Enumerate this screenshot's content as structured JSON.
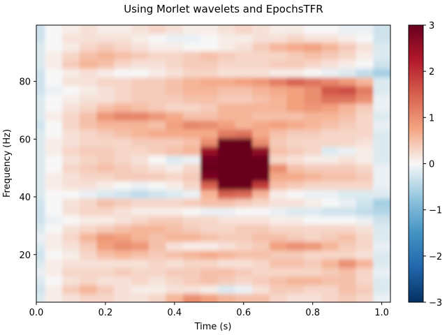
{
  "chart_data": {
    "type": "heatmap",
    "title": "Using Morlet wavelets and EpochsTFR",
    "xlabel": "Time (s)",
    "ylabel": "Frequency (Hz)",
    "xlim": [
      0.0,
      1.025
    ],
    "ylim": [
      3.5,
      99.5
    ],
    "xticks": [
      0.0,
      0.2,
      0.4,
      0.6,
      0.8,
      1.0
    ],
    "xtick_labels": [
      "0.0",
      "0.2",
      "0.4",
      "0.6",
      "0.8",
      "1.0"
    ],
    "yticks": [
      20,
      40,
      60,
      80
    ],
    "ytick_labels": [
      "20",
      "40",
      "60",
      "80"
    ],
    "colormap": "RdBu_r",
    "colorbar": {
      "vmin": -3,
      "vmax": 3,
      "ticks": [
        -3,
        -2,
        -1,
        0,
        1,
        2,
        3
      ],
      "tick_labels": [
        "−3",
        "−2",
        "−1",
        "0",
        "1",
        "2",
        "3"
      ]
    },
    "freqs": [
      5,
      8,
      11,
      14,
      17,
      20,
      23,
      26,
      29,
      32,
      35,
      38,
      41,
      44,
      47,
      50,
      53,
      56,
      59,
      62,
      65,
      68,
      71,
      74,
      77,
      80,
      83,
      86,
      89,
      92,
      95,
      98
    ],
    "times": [
      0.0,
      0.05,
      0.1,
      0.15,
      0.2,
      0.25,
      0.3,
      0.35,
      0.4,
      0.45,
      0.5,
      0.55,
      0.6,
      0.65,
      0.7,
      0.75,
      0.8,
      0.85,
      0.9,
      0.95,
      1.0
    ],
    "power": [
      [
        -0.2,
        0.1,
        0.2,
        0.3,
        0.3,
        0.2,
        0.2,
        0.3,
        0.6,
        1.0,
        0.8,
        0.6,
        0.5,
        0.5,
        0.3,
        0.2,
        0.2,
        0.3,
        0.4,
        0.3,
        -0.1
      ],
      [
        -0.3,
        0.1,
        0.4,
        0.6,
        0.4,
        0.2,
        0.1,
        0.1,
        0.2,
        0.2,
        0.1,
        -0.2,
        -0.1,
        0.2,
        0.4,
        0.4,
        0.3,
        0.3,
        0.5,
        0.4,
        -0.2
      ],
      [
        -0.2,
        0.0,
        0.2,
        0.3,
        0.2,
        0.2,
        0.3,
        0.2,
        0.3,
        0.4,
        0.5,
        0.4,
        0.3,
        0.4,
        0.5,
        0.6,
        0.6,
        0.5,
        0.5,
        0.3,
        -0.2
      ],
      [
        -0.1,
        0.1,
        0.3,
        0.3,
        0.3,
        0.4,
        0.3,
        0.3,
        0.4,
        0.4,
        0.5,
        0.5,
        0.4,
        0.3,
        0.3,
        0.3,
        0.3,
        0.4,
        0.5,
        0.3,
        -0.1
      ],
      [
        -0.2,
        0.1,
        0.2,
        0.2,
        0.2,
        0.2,
        0.2,
        0.3,
        0.2,
        0.3,
        0.3,
        0.2,
        0.2,
        0.3,
        0.5,
        0.5,
        0.4,
        0.6,
        1.0,
        0.6,
        -0.2
      ],
      [
        -0.3,
        0.0,
        0.1,
        0.3,
        0.5,
        0.6,
        0.5,
        0.4,
        0.5,
        0.6,
        0.7,
        0.6,
        0.5,
        0.5,
        0.4,
        0.4,
        0.3,
        0.3,
        0.3,
        0.2,
        -0.2
      ],
      [
        -0.2,
        0.1,
        0.2,
        0.4,
        0.8,
        1.0,
        0.9,
        0.5,
        0.2,
        0.1,
        0.1,
        0.2,
        0.3,
        0.4,
        0.8,
        1.0,
        0.9,
        0.6,
        0.4,
        0.3,
        -0.1
      ],
      [
        -0.1,
        0.1,
        0.3,
        0.6,
        0.9,
        0.8,
        0.6,
        0.5,
        0.6,
        0.6,
        0.5,
        0.4,
        0.4,
        0.5,
        0.5,
        0.4,
        0.3,
        0.4,
        0.5,
        0.3,
        -0.2
      ],
      [
        -0.2,
        0.0,
        0.2,
        0.3,
        0.4,
        0.5,
        0.6,
        0.6,
        0.5,
        0.4,
        0.3,
        0.3,
        0.4,
        0.4,
        0.3,
        0.3,
        0.3,
        0.3,
        0.3,
        0.2,
        -0.2
      ],
      [
        -0.3,
        -0.1,
        0.0,
        0.1,
        0.1,
        0.2,
        0.3,
        0.4,
        0.4,
        0.3,
        0.3,
        0.2,
        0.2,
        0.2,
        0.1,
        0.1,
        0.0,
        0.0,
        0.0,
        -0.1,
        -0.3
      ],
      [
        -0.3,
        0.0,
        0.2,
        0.3,
        0.3,
        0.2,
        0.1,
        0.1,
        0.1,
        0.0,
        -0.1,
        -0.1,
        0.0,
        0.0,
        -0.1,
        -0.2,
        -0.2,
        -0.3,
        -0.3,
        -0.4,
        -0.5
      ],
      [
        -0.3,
        0.0,
        0.2,
        0.3,
        0.5,
        0.4,
        0.3,
        0.3,
        0.3,
        0.4,
        0.5,
        0.5,
        0.4,
        0.3,
        0.2,
        0.2,
        0.1,
        0.0,
        -0.1,
        -0.3,
        -0.6
      ],
      [
        -0.2,
        0.0,
        0.0,
        -0.1,
        -0.2,
        -0.3,
        -0.4,
        -0.3,
        -0.2,
        -0.1,
        0.6,
        1.5,
        1.4,
        0.6,
        0.1,
        0.0,
        -0.1,
        -0.1,
        -0.2,
        -0.2,
        -0.2
      ],
      [
        -0.2,
        0.1,
        0.2,
        0.2,
        0.1,
        0.0,
        -0.1,
        0.0,
        0.1,
        0.3,
        1.5,
        3.2,
        3.3,
        1.9,
        0.5,
        0.4,
        0.3,
        0.3,
        0.3,
        0.3,
        -0.1
      ],
      [
        -0.2,
        0.1,
        0.2,
        0.3,
        0.3,
        0.4,
        0.4,
        0.4,
        0.3,
        0.4,
        2.8,
        3.8,
        3.8,
        3.0,
        0.7,
        0.7,
        0.6,
        0.5,
        0.5,
        0.4,
        -0.1
      ],
      [
        -0.2,
        0.0,
        0.3,
        0.4,
        0.5,
        0.4,
        0.3,
        0.2,
        0.1,
        0.3,
        3.2,
        3.9,
        3.9,
        3.4,
        1.0,
        0.5,
        0.4,
        0.4,
        0.4,
        0.3,
        -0.1
      ],
      [
        -0.2,
        0.0,
        0.2,
        0.3,
        0.4,
        0.3,
        0.2,
        0.0,
        -0.2,
        -0.1,
        2.9,
        3.8,
        3.8,
        3.1,
        0.3,
        0.2,
        0.1,
        0.1,
        0.2,
        0.1,
        -0.2
      ],
      [
        -0.2,
        0.1,
        0.3,
        0.4,
        0.4,
        0.3,
        0.3,
        0.4,
        0.5,
        0.6,
        2.5,
        3.5,
        3.5,
        2.6,
        0.5,
        0.4,
        0.3,
        -0.2,
        -0.1,
        0.1,
        -0.2
      ],
      [
        -0.2,
        0.1,
        0.2,
        0.3,
        0.3,
        0.3,
        0.4,
        0.4,
        0.4,
        0.5,
        1.0,
        3.1,
        3.0,
        1.0,
        0.4,
        0.3,
        0.3,
        0.3,
        0.3,
        0.2,
        -0.2
      ],
      [
        -0.2,
        0.0,
        0.2,
        0.3,
        0.4,
        0.5,
        0.6,
        0.7,
        0.7,
        0.7,
        0.7,
        1.2,
        1.3,
        0.7,
        0.5,
        0.4,
        0.4,
        0.3,
        0.3,
        0.3,
        -0.2
      ],
      [
        -0.3,
        0.0,
        0.3,
        0.5,
        0.6,
        0.6,
        0.6,
        0.5,
        0.8,
        1.1,
        1.0,
        0.8,
        0.6,
        0.7,
        0.8,
        0.7,
        0.6,
        0.5,
        0.4,
        0.3,
        -0.1
      ],
      [
        -0.2,
        0.1,
        0.3,
        0.5,
        0.9,
        1.1,
        1.1,
        0.9,
        0.7,
        0.5,
        0.5,
        0.6,
        0.6,
        0.5,
        0.5,
        0.5,
        0.6,
        0.6,
        0.5,
        0.3,
        -0.2
      ],
      [
        -0.2,
        0.0,
        0.2,
        0.3,
        0.5,
        0.6,
        0.5,
        0.4,
        0.3,
        0.3,
        0.4,
        0.6,
        0.6,
        0.6,
        0.6,
        0.8,
        0.9,
        0.8,
        0.6,
        0.4,
        -0.1
      ],
      [
        -0.2,
        0.0,
        0.1,
        0.2,
        0.2,
        0.3,
        0.4,
        0.4,
        0.4,
        0.5,
        0.5,
        0.4,
        0.4,
        0.5,
        0.6,
        0.8,
        1.0,
        1.3,
        1.3,
        1.0,
        -0.1
      ],
      [
        -0.3,
        -0.1,
        0.0,
        0.1,
        0.2,
        0.3,
        0.4,
        0.4,
        0.5,
        0.6,
        0.6,
        0.5,
        0.5,
        0.6,
        0.7,
        0.8,
        1.0,
        1.6,
        1.7,
        1.2,
        -0.2
      ],
      [
        -0.3,
        0.0,
        0.2,
        0.2,
        0.3,
        0.3,
        0.4,
        0.4,
        0.5,
        0.6,
        0.7,
        0.7,
        0.8,
        0.9,
        1.2,
        1.5,
        1.3,
        1.1,
        0.9,
        0.6,
        -0.2
      ],
      [
        -0.3,
        0.0,
        0.1,
        0.2,
        0.1,
        0.0,
        0.0,
        0.1,
        0.2,
        0.3,
        0.3,
        0.2,
        0.2,
        0.2,
        0.1,
        0.1,
        0.0,
        -0.1,
        -0.2,
        -0.4,
        -0.6
      ],
      [
        -0.2,
        0.1,
        0.4,
        0.6,
        0.5,
        0.3,
        0.2,
        0.2,
        0.3,
        0.4,
        0.4,
        0.3,
        0.3,
        0.3,
        0.4,
        0.4,
        0.3,
        0.2,
        0.1,
        0.0,
        -0.3
      ],
      [
        -0.2,
        0.1,
        0.3,
        0.5,
        0.6,
        0.5,
        0.4,
        0.3,
        0.3,
        0.4,
        0.5,
        0.4,
        0.3,
        0.3,
        0.3,
        0.4,
        0.5,
        0.4,
        0.3,
        0.1,
        -0.2
      ],
      [
        -0.2,
        0.0,
        0.1,
        0.3,
        0.4,
        0.3,
        0.2,
        0.1,
        0.1,
        0.0,
        0.0,
        0.1,
        0.2,
        0.4,
        0.6,
        0.7,
        0.8,
        0.6,
        0.4,
        0.2,
        -0.2
      ],
      [
        -0.3,
        0.0,
        0.2,
        0.2,
        0.2,
        0.2,
        0.1,
        0.0,
        -0.1,
        -0.1,
        0.0,
        0.1,
        0.1,
        0.2,
        0.2,
        0.3,
        0.2,
        0.2,
        0.1,
        0.0,
        -0.3
      ],
      [
        -0.3,
        0.0,
        0.1,
        0.2,
        0.1,
        0.1,
        0.2,
        0.3,
        0.2,
        0.1,
        0.1,
        0.2,
        0.3,
        0.2,
        0.1,
        0.1,
        0.0,
        0.0,
        -0.1,
        -0.1,
        -0.3
      ]
    ]
  }
}
